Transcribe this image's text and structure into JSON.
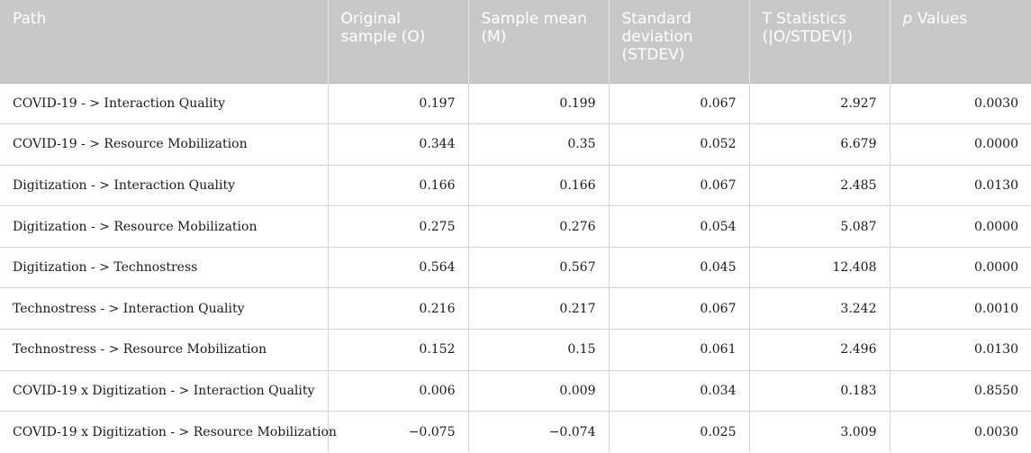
{
  "table": {
    "headers": {
      "path": "Path",
      "original": "Original sample (O)",
      "mean": "Sample mean (M)",
      "stdev": "Standard deviation (STDEV)",
      "tstat": "T Statistics (|O/STDEV|)",
      "p_italic": "p",
      "p_rest": " Values"
    },
    "rows": [
      [
        "COVID-19 - > Interaction Quality",
        "0.197",
        "0.199",
        "0.067",
        "2.927",
        "0.0030"
      ],
      [
        "COVID-19 - > Resource Mobilization",
        "0.344",
        "0.35",
        "0.052",
        "6.679",
        "0.0000"
      ],
      [
        "Digitization - > Interaction Quality",
        "0.166",
        "0.166",
        "0.067",
        "2.485",
        "0.0130"
      ],
      [
        "Digitization - > Resource Mobilization",
        "0.275",
        "0.276",
        "0.054",
        "5.087",
        "0.0000"
      ],
      [
        "Digitization - > Technostress",
        "0.564",
        "0.567",
        "0.045",
        "12.408",
        "0.0000"
      ],
      [
        "Technostress - > Interaction Quality",
        "0.216",
        "0.217",
        "0.067",
        "3.242",
        "0.0010"
      ],
      [
        "Technostress - > Resource Mobilization",
        "0.152",
        "0.15",
        "0.061",
        "2.496",
        "0.0130"
      ],
      [
        "COVID-19 x Digitization - > Interaction Quality",
        "0.006",
        "0.009",
        "0.034",
        "0.183",
        "0.8550"
      ],
      [
        "COVID-19 x Digitization - > Resource Mobilization",
        "−0.075",
        "−0.074",
        "0.025",
        "3.009",
        "0.0030"
      ]
    ]
  }
}
